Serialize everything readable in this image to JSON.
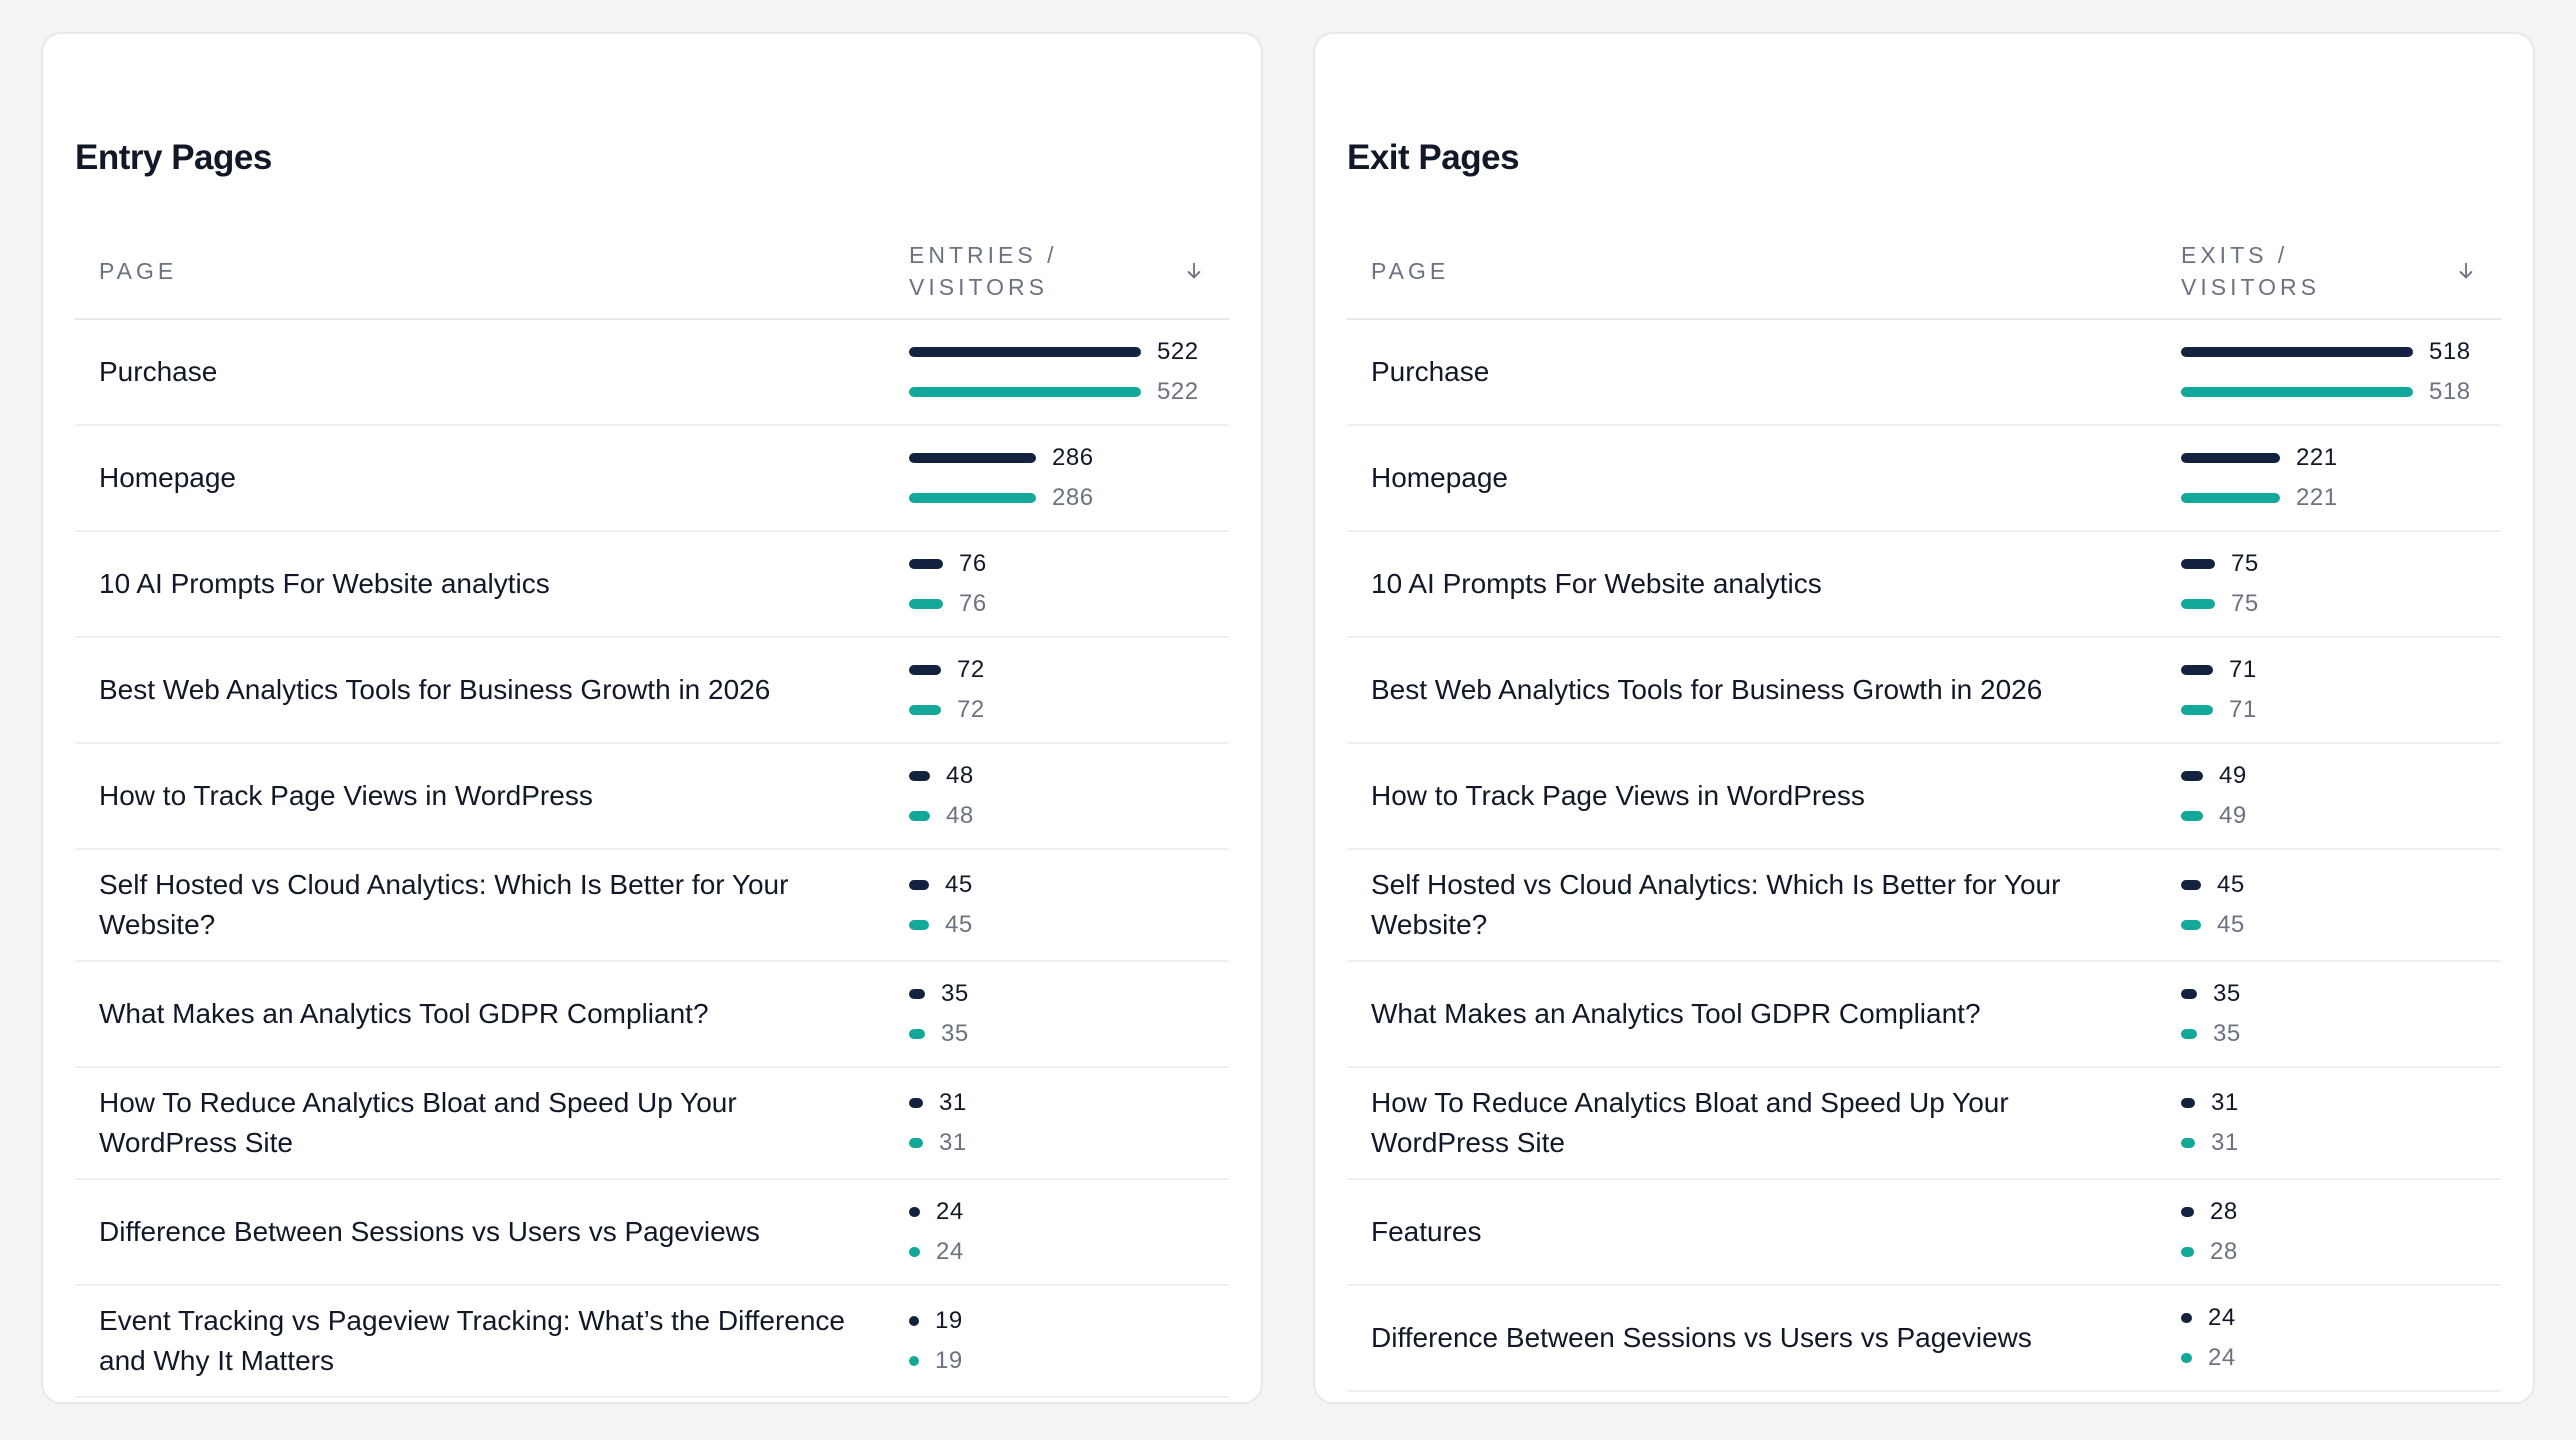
{
  "entry": {
    "title": "Entry Pages",
    "col_page": "PAGE",
    "col_metric": "ENTRIES /\nVISITORS",
    "max": 522,
    "rows": [
      {
        "page": "Purchase",
        "primary": 522,
        "secondary": 522
      },
      {
        "page": "Homepage",
        "primary": 286,
        "secondary": 286
      },
      {
        "page": "10 AI Prompts For Website analytics",
        "primary": 76,
        "secondary": 76
      },
      {
        "page": "Best Web Analytics Tools for Business Growth in 2026",
        "primary": 72,
        "secondary": 72
      },
      {
        "page": "How to Track Page Views in WordPress",
        "primary": 48,
        "secondary": 48
      },
      {
        "page": "Self Hosted vs Cloud Analytics: Which Is Better for Your Website?",
        "primary": 45,
        "secondary": 45
      },
      {
        "page": "What Makes an Analytics Tool GDPR Compliant?",
        "primary": 35,
        "secondary": 35
      },
      {
        "page": "How To Reduce Analytics Bloat and Speed Up Your WordPress Site",
        "primary": 31,
        "secondary": 31
      },
      {
        "page": "Difference Between Sessions vs Users vs Pageviews",
        "primary": 24,
        "secondary": 24
      },
      {
        "page": "Event Tracking vs Pageview Tracking: What’s the Difference and Why It Matters",
        "primary": 19,
        "secondary": 19
      }
    ]
  },
  "exit": {
    "title": "Exit Pages",
    "col_page": "PAGE",
    "col_metric": "EXITS /\nVISITORS",
    "max": 518,
    "rows": [
      {
        "page": "Purchase",
        "primary": 518,
        "secondary": 518
      },
      {
        "page": "Homepage",
        "primary": 221,
        "secondary": 221
      },
      {
        "page": "10 AI Prompts For Website analytics",
        "primary": 75,
        "secondary": 75
      },
      {
        "page": "Best Web Analytics Tools for Business Growth in 2026",
        "primary": 71,
        "secondary": 71
      },
      {
        "page": "How to Track Page Views in WordPress",
        "primary": 49,
        "secondary": 49
      },
      {
        "page": "Self Hosted vs Cloud Analytics: Which Is Better for Your Website?",
        "primary": 45,
        "secondary": 45
      },
      {
        "page": "What Makes an Analytics Tool GDPR Compliant?",
        "primary": 35,
        "secondary": 35
      },
      {
        "page": "How To Reduce Analytics Bloat and Speed Up Your WordPress Site",
        "primary": 31,
        "secondary": 31
      },
      {
        "page": "Features",
        "primary": 28,
        "secondary": 28
      },
      {
        "page": "Difference Between Sessions vs Users vs Pageviews",
        "primary": 24,
        "secondary": 24
      }
    ]
  },
  "colors": {
    "primary_bar": "#13233f",
    "secondary_bar": "#14a89a"
  },
  "icons": {
    "sort": "arrow-down-icon"
  }
}
